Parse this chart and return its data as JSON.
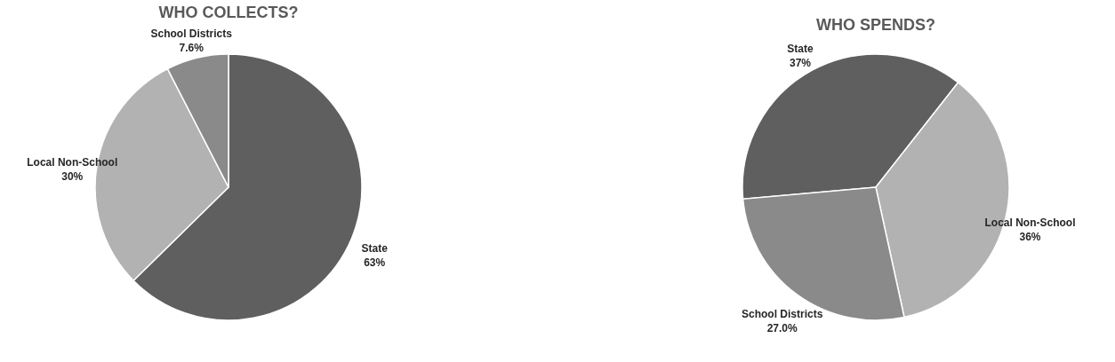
{
  "chart_data": [
    {
      "type": "pie",
      "title": "WHO COLLECTS?",
      "categories": [
        "State",
        "Local Non-School",
        "School Districts"
      ],
      "values": [
        63,
        30,
        7.6
      ],
      "value_labels": [
        "63%",
        "30%",
        "7.6%"
      ],
      "colors": [
        "#5f5f5f",
        "#b2b2b2",
        "#8a8a8a"
      ]
    },
    {
      "type": "pie",
      "title": "WHO SPENDS?",
      "categories": [
        "State",
        "Local Non-School",
        "School Districts"
      ],
      "values": [
        37,
        36,
        27.0
      ],
      "value_labels": [
        "37%",
        "36%",
        "27.0%"
      ],
      "colors": [
        "#5f5f5f",
        "#b2b2b2",
        "#8a8a8a"
      ]
    }
  ]
}
